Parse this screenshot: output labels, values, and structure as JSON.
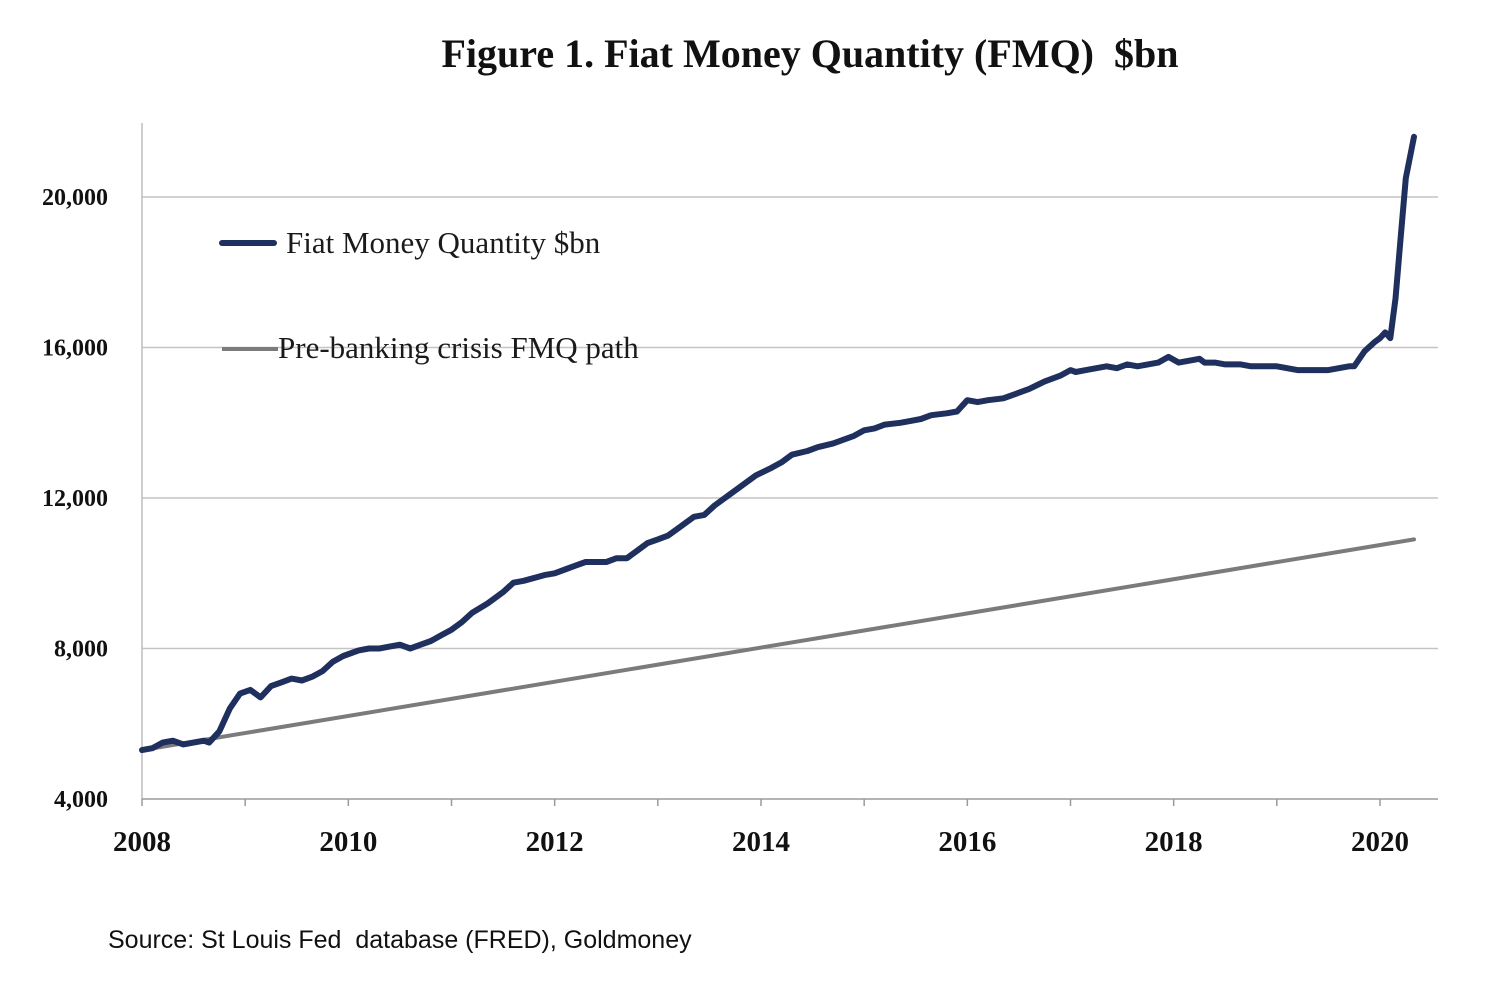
{
  "chart_data": {
    "type": "line",
    "title": "Figure 1. Fiat Money Quantity (FMQ)  $bn",
    "xlabel": "",
    "ylabel": "",
    "xlim": [
      2008,
      2020.5
    ],
    "ylim": [
      4000,
      22000
    ],
    "y_ticks": [
      4000,
      8000,
      12000,
      16000,
      20000
    ],
    "y_tick_labels": [
      "4,000",
      "8,000",
      "12,000",
      "16,000",
      "20,000"
    ],
    "x_ticks": [
      2008,
      2010,
      2012,
      2014,
      2016,
      2018,
      2020
    ],
    "x_tick_labels": [
      "2008",
      "2010",
      "2012",
      "2014",
      "2016",
      "2018",
      "2020"
    ],
    "grid": "horizontal",
    "legend_position": "top-left",
    "series": [
      {
        "name": "Fiat Money Quantity $bn",
        "color": "#1f2f5e",
        "x": [
          2008.0,
          2008.1,
          2008.2,
          2008.3,
          2008.4,
          2008.5,
          2008.6,
          2008.65,
          2008.75,
          2008.85,
          2008.95,
          2009.05,
          2009.15,
          2009.25,
          2009.35,
          2009.45,
          2009.55,
          2009.65,
          2009.75,
          2009.85,
          2009.95,
          2010.1,
          2010.2,
          2010.3,
          2010.4,
          2010.5,
          2010.6,
          2010.7,
          2010.8,
          2010.9,
          2011.0,
          2011.1,
          2011.2,
          2011.35,
          2011.5,
          2011.6,
          2011.7,
          2011.9,
          2012.0,
          2012.1,
          2012.2,
          2012.3,
          2012.4,
          2012.5,
          2012.6,
          2012.7,
          2012.8,
          2012.9,
          2013.0,
          2013.1,
          2013.2,
          2013.35,
          2013.45,
          2013.55,
          2013.7,
          2013.8,
          2013.95,
          2014.1,
          2014.2,
          2014.3,
          2014.45,
          2014.55,
          2014.7,
          2014.8,
          2014.9,
          2015.0,
          2015.1,
          2015.2,
          2015.35,
          2015.45,
          2015.55,
          2015.65,
          2015.8,
          2015.9,
          2016.0,
          2016.1,
          2016.2,
          2016.35,
          2016.5,
          2016.6,
          2016.75,
          2016.9,
          2017.0,
          2017.05,
          2017.15,
          2017.25,
          2017.35,
          2017.45,
          2017.55,
          2017.65,
          2017.75,
          2017.85,
          2017.95,
          2018.05,
          2018.15,
          2018.25,
          2018.3,
          2018.4,
          2018.5,
          2018.65,
          2018.75,
          2018.85,
          2019.0,
          2019.1,
          2019.2,
          2019.35,
          2019.5,
          2019.6,
          2019.7,
          2019.75,
          2019.85,
          2019.95,
          2020.0,
          2020.05,
          2020.1,
          2020.15,
          2020.2,
          2020.25,
          2020.33
        ],
        "y": [
          5300,
          5350,
          5500,
          5550,
          5450,
          5500,
          5550,
          5500,
          5800,
          6400,
          6800,
          6900,
          6700,
          7000,
          7100,
          7200,
          7150,
          7250,
          7400,
          7650,
          7800,
          7950,
          8000,
          8000,
          8050,
          8100,
          8000,
          8100,
          8200,
          8350,
          8500,
          8700,
          8950,
          9200,
          9500,
          9750,
          9800,
          9950,
          10000,
          10100,
          10200,
          10300,
          10300,
          10300,
          10400,
          10400,
          10600,
          10800,
          10900,
          11000,
          11200,
          11500,
          11550,
          11800,
          12100,
          12300,
          12600,
          12800,
          12950,
          13150,
          13250,
          13350,
          13450,
          13550,
          13650,
          13800,
          13850,
          13950,
          14000,
          14050,
          14100,
          14200,
          14250,
          14300,
          14600,
          14550,
          14600,
          14650,
          14800,
          14900,
          15100,
          15250,
          15400,
          15350,
          15400,
          15450,
          15500,
          15450,
          15550,
          15500,
          15550,
          15600,
          15750,
          15600,
          15650,
          15700,
          15600,
          15600,
          15550,
          15550,
          15500,
          15500,
          15500,
          15450,
          15400,
          15400,
          15400,
          15450,
          15500,
          15500,
          15900,
          16150,
          16250,
          16400,
          16250,
          17300,
          18900,
          20500,
          21600
        ]
      },
      {
        "name": "Pre-banking crisis FMQ path",
        "color": "#7b7b7b",
        "x": [
          2008.0,
          2020.33
        ],
        "y": [
          5300,
          10900
        ]
      }
    ]
  },
  "source_note": "Source: St Louis Fed  database (FRED), Goldmoney"
}
